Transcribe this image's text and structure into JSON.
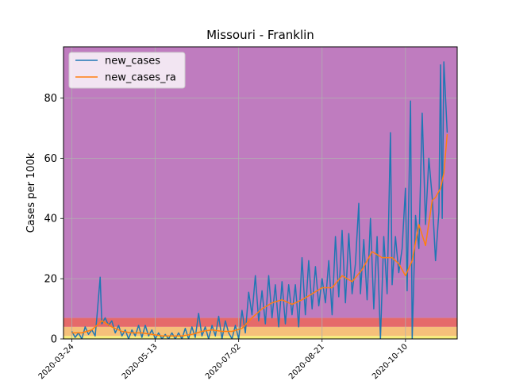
{
  "chart_data": {
    "type": "line",
    "title": "Missouri - Franklin",
    "xlabel": "",
    "ylabel": "Cases per 100k",
    "xlim": [
      "2020-03-19",
      "2020-11-10"
    ],
    "ylim": [
      0,
      97
    ],
    "yticks": [
      0,
      20,
      40,
      60,
      80
    ],
    "xticks": [
      "2020-03-24",
      "2020-05-13",
      "2020-07-02",
      "2020-08-21",
      "2020-10-10"
    ],
    "grid": true,
    "legend_position": "upper-left",
    "background_bands": [
      {
        "from": 0,
        "to": 1,
        "color": "#f5ee7a"
      },
      {
        "from": 1,
        "to": 4,
        "color": "#f5c07a"
      },
      {
        "from": 4,
        "to": 7,
        "color": "#e56a6a"
      },
      {
        "from": 7,
        "to": 97,
        "color": "#bf7cbf"
      }
    ],
    "series": [
      {
        "name": "new_cases",
        "color": "#1f77b4",
        "points": [
          [
            "2020-03-24",
            2.5
          ],
          [
            "2020-03-26",
            0.5
          ],
          [
            "2020-03-28",
            2
          ],
          [
            "2020-03-30",
            0
          ],
          [
            "2020-04-01",
            4
          ],
          [
            "2020-04-03",
            1.5
          ],
          [
            "2020-04-05",
            3
          ],
          [
            "2020-04-07",
            1
          ],
          [
            "2020-04-08",
            7
          ],
          [
            "2020-04-10",
            20.5
          ],
          [
            "2020-04-11",
            5
          ],
          [
            "2020-04-13",
            7
          ],
          [
            "2020-04-15",
            4.5
          ],
          [
            "2020-04-17",
            6
          ],
          [
            "2020-04-19",
            2
          ],
          [
            "2020-04-21",
            4.5
          ],
          [
            "2020-04-23",
            1
          ],
          [
            "2020-04-25",
            3
          ],
          [
            "2020-04-27",
            0
          ],
          [
            "2020-04-29",
            3
          ],
          [
            "2020-05-01",
            1
          ],
          [
            "2020-05-03",
            4.5
          ],
          [
            "2020-05-05",
            0.5
          ],
          [
            "2020-05-07",
            4.5
          ],
          [
            "2020-05-09",
            1
          ],
          [
            "2020-05-11",
            3
          ],
          [
            "2020-05-13",
            0
          ],
          [
            "2020-05-15",
            2
          ],
          [
            "2020-05-17",
            0
          ],
          [
            "2020-05-19",
            1.5
          ],
          [
            "2020-05-21",
            0
          ],
          [
            "2020-05-23",
            2
          ],
          [
            "2020-05-25",
            0
          ],
          [
            "2020-05-27",
            2
          ],
          [
            "2020-05-29",
            0
          ],
          [
            "2020-05-31",
            3.5
          ],
          [
            "2020-06-02",
            0
          ],
          [
            "2020-06-04",
            4
          ],
          [
            "2020-06-06",
            0.5
          ],
          [
            "2020-06-08",
            8.5
          ],
          [
            "2020-06-10",
            1
          ],
          [
            "2020-06-12",
            4
          ],
          [
            "2020-06-14",
            0
          ],
          [
            "2020-06-16",
            4.5
          ],
          [
            "2020-06-18",
            1
          ],
          [
            "2020-06-20",
            7.5
          ],
          [
            "2020-06-22",
            0
          ],
          [
            "2020-06-24",
            6
          ],
          [
            "2020-06-26",
            2
          ],
          [
            "2020-06-28",
            0
          ],
          [
            "2020-06-30",
            4.5
          ],
          [
            "2020-07-02",
            0
          ],
          [
            "2020-07-04",
            9.5
          ],
          [
            "2020-07-06",
            2
          ],
          [
            "2020-07-08",
            15.5
          ],
          [
            "2020-07-10",
            8
          ],
          [
            "2020-07-12",
            21
          ],
          [
            "2020-07-14",
            6
          ],
          [
            "2020-07-16",
            16
          ],
          [
            "2020-07-18",
            5
          ],
          [
            "2020-07-20",
            21
          ],
          [
            "2020-07-22",
            7
          ],
          [
            "2020-07-24",
            18
          ],
          [
            "2020-07-26",
            4
          ],
          [
            "2020-07-28",
            19
          ],
          [
            "2020-07-30",
            5
          ],
          [
            "2020-08-01",
            18
          ],
          [
            "2020-08-03",
            8
          ],
          [
            "2020-08-05",
            18
          ],
          [
            "2020-08-07",
            4
          ],
          [
            "2020-08-09",
            27
          ],
          [
            "2020-08-11",
            8
          ],
          [
            "2020-08-13",
            26
          ],
          [
            "2020-08-15",
            10
          ],
          [
            "2020-08-17",
            24
          ],
          [
            "2020-08-19",
            11
          ],
          [
            "2020-08-21",
            20
          ],
          [
            "2020-08-23",
            12
          ],
          [
            "2020-08-25",
            26
          ],
          [
            "2020-08-27",
            8
          ],
          [
            "2020-08-29",
            34
          ],
          [
            "2020-08-31",
            14
          ],
          [
            "2020-09-02",
            36
          ],
          [
            "2020-09-04",
            12
          ],
          [
            "2020-09-06",
            35
          ],
          [
            "2020-09-08",
            15
          ],
          [
            "2020-09-10",
            25
          ],
          [
            "2020-09-12",
            45
          ],
          [
            "2020-09-13",
            15
          ],
          [
            "2020-09-15",
            33
          ],
          [
            "2020-09-17",
            13
          ],
          [
            "2020-09-19",
            40
          ],
          [
            "2020-09-21",
            10
          ],
          [
            "2020-09-23",
            34
          ],
          [
            "2020-09-25",
            0
          ],
          [
            "2020-09-27",
            34
          ],
          [
            "2020-09-29",
            15
          ],
          [
            "2020-10-01",
            68.5
          ],
          [
            "2020-10-02",
            18
          ],
          [
            "2020-10-04",
            34
          ],
          [
            "2020-10-06",
            22
          ],
          [
            "2020-10-08",
            30
          ],
          [
            "2020-10-10",
            50
          ],
          [
            "2020-10-11",
            16
          ],
          [
            "2020-10-13",
            79
          ],
          [
            "2020-10-14",
            0
          ],
          [
            "2020-10-16",
            41
          ],
          [
            "2020-10-18",
            30
          ],
          [
            "2020-10-20",
            75
          ],
          [
            "2020-10-22",
            38
          ],
          [
            "2020-10-24",
            60
          ],
          [
            "2020-10-26",
            47
          ],
          [
            "2020-10-28",
            26
          ],
          [
            "2020-10-30",
            42
          ],
          [
            "2020-10-31",
            91
          ],
          [
            "2020-11-01",
            40
          ],
          [
            "2020-11-02",
            92
          ],
          [
            "2020-11-04",
            68.5
          ]
        ]
      },
      {
        "name": "new_cases_ra",
        "color": "#ff7f0e",
        "points": [
          [
            "2020-03-24",
            2
          ],
          [
            "2020-03-30",
            2
          ],
          [
            "2020-04-05",
            3
          ],
          [
            "2020-04-11",
            6
          ],
          [
            "2020-04-17",
            4
          ],
          [
            "2020-04-23",
            2.5
          ],
          [
            "2020-04-29",
            2
          ],
          [
            "2020-05-05",
            2
          ],
          [
            "2020-05-11",
            1.5
          ],
          [
            "2020-05-17",
            1
          ],
          [
            "2020-05-23",
            1
          ],
          [
            "2020-05-29",
            1
          ],
          [
            "2020-06-04",
            1.5
          ],
          [
            "2020-06-10",
            2.5
          ],
          [
            "2020-06-16",
            3
          ],
          [
            "2020-06-22",
            2.5
          ],
          [
            "2020-06-28",
            2.5
          ],
          [
            "2020-07-04",
            3.5
          ],
          [
            "2020-07-10",
            7
          ],
          [
            "2020-07-16",
            10
          ],
          [
            "2020-07-22",
            12
          ],
          [
            "2020-07-28",
            13
          ],
          [
            "2020-08-03",
            11.5
          ],
          [
            "2020-08-09",
            13
          ],
          [
            "2020-08-15",
            15
          ],
          [
            "2020-08-21",
            17
          ],
          [
            "2020-08-27",
            17
          ],
          [
            "2020-09-02",
            21
          ],
          [
            "2020-09-08",
            19
          ],
          [
            "2020-09-14",
            23
          ],
          [
            "2020-09-20",
            29
          ],
          [
            "2020-09-26",
            27
          ],
          [
            "2020-10-02",
            27
          ],
          [
            "2020-10-06",
            25
          ],
          [
            "2020-10-10",
            21
          ],
          [
            "2020-10-14",
            26
          ],
          [
            "2020-10-18",
            38
          ],
          [
            "2020-10-22",
            31
          ],
          [
            "2020-10-26",
            46
          ],
          [
            "2020-10-28",
            47
          ],
          [
            "2020-10-31",
            50
          ],
          [
            "2020-11-02",
            55
          ],
          [
            "2020-11-04",
            68
          ]
        ]
      }
    ]
  }
}
